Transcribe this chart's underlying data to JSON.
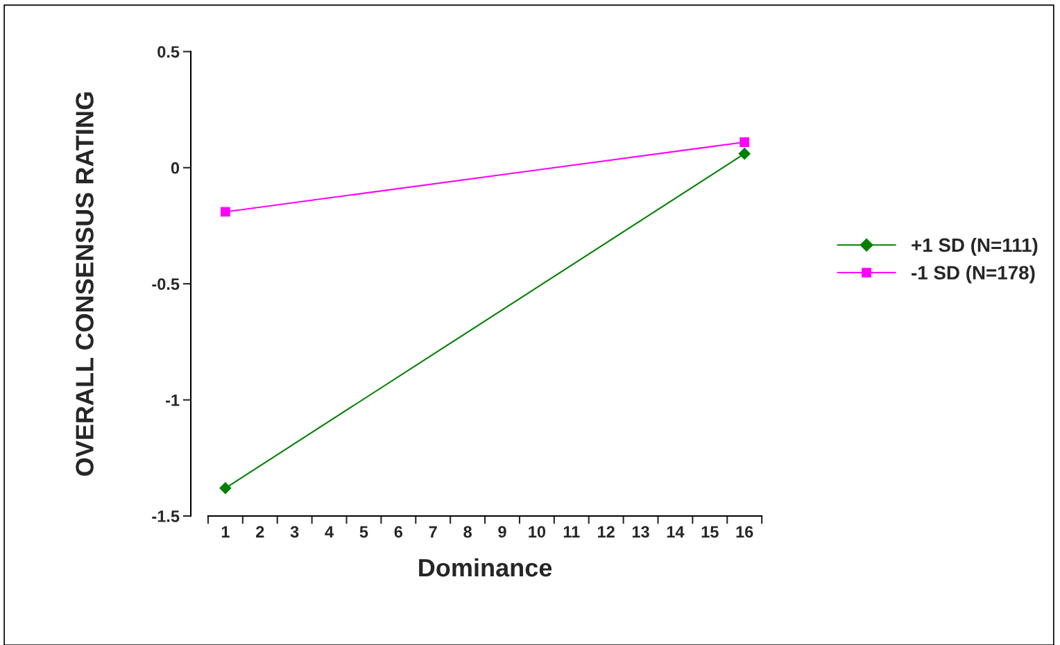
{
  "chart_data": {
    "type": "line",
    "xlabel": "Dominance",
    "ylabel": "OVERALL CONSENSUS RATING",
    "categories": [
      "1",
      "2",
      "3",
      "4",
      "5",
      "6",
      "7",
      "8",
      "9",
      "10",
      "11",
      "12",
      "13",
      "14",
      "15",
      "16"
    ],
    "series": [
      {
        "name": "+1 SD (N=111)",
        "color": "#008000",
        "marker": "diamond",
        "values": [
          -1.38,
          null,
          null,
          null,
          null,
          null,
          null,
          null,
          null,
          null,
          null,
          null,
          null,
          null,
          null,
          0.06
        ]
      },
      {
        "name": "-1 SD (N=178)",
        "color": "#ff00ff",
        "marker": "square",
        "values": [
          -0.19,
          null,
          null,
          null,
          null,
          null,
          null,
          null,
          null,
          null,
          null,
          null,
          null,
          null,
          null,
          0.11
        ]
      }
    ],
    "ylim": [
      -1.5,
      0.5
    ],
    "yticks": [
      -1.5,
      -1,
      -0.5,
      0,
      0.5
    ],
    "grid": false,
    "legend": "right",
    "line_style": "solid"
  }
}
